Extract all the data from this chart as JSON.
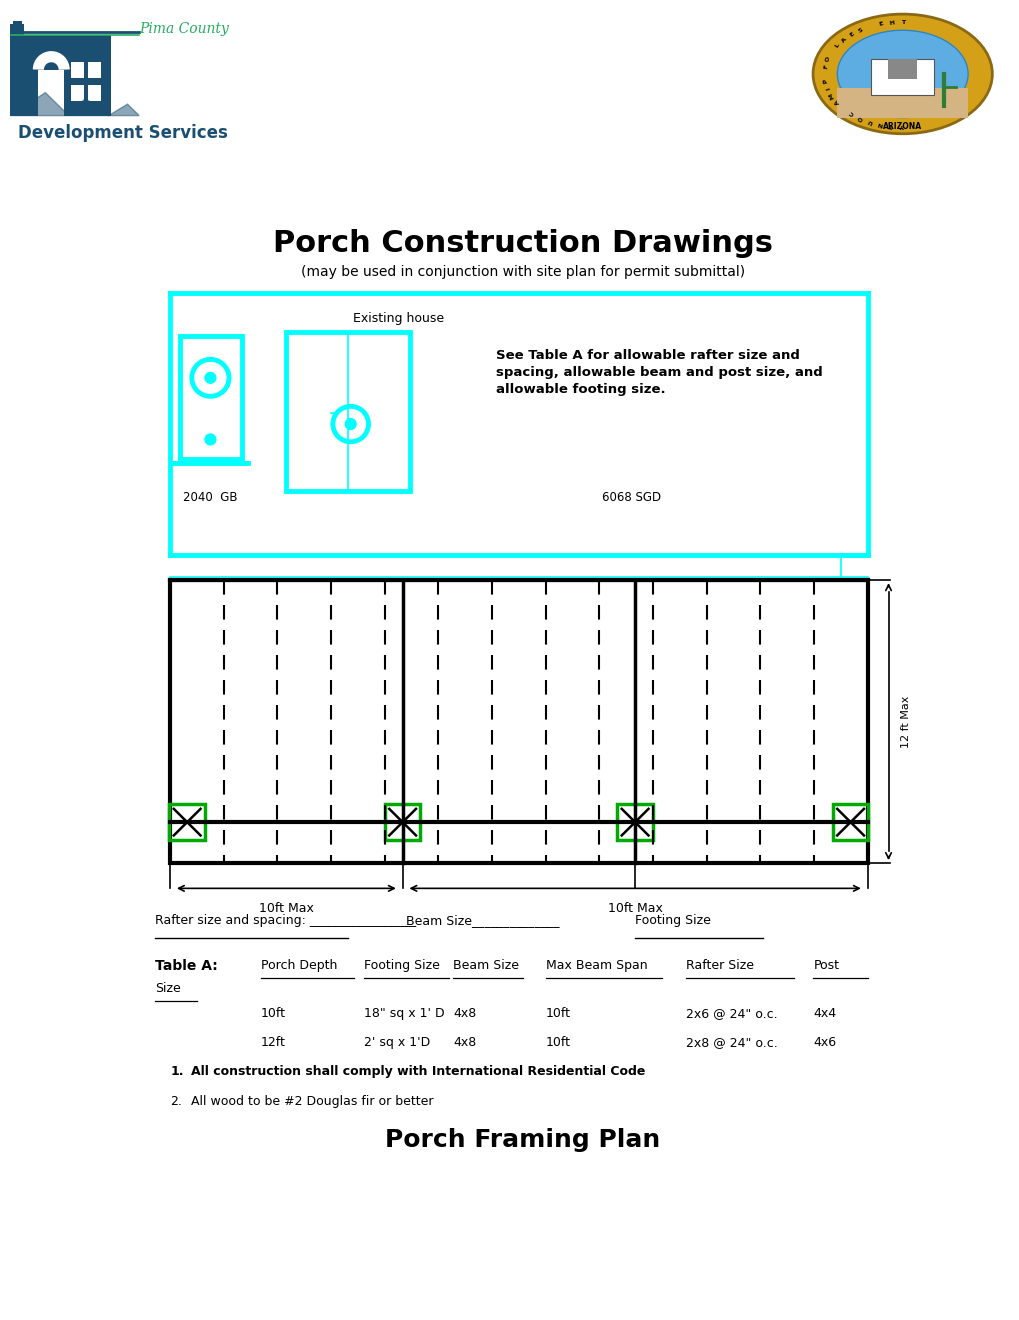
{
  "title": "Porch Construction Drawings",
  "subtitle": "(may be used in conjunction with site plan for permit submittal)",
  "bg_color": "#ffffff",
  "cyan": "#00FFFF",
  "black": "#000000",
  "green": "#00AA00",
  "dark_blue": "#1a3a5c",
  "building_color": "#1B4F72",
  "rafter_label": "Rafter size and spacing: _________________",
  "beam_label": "Beam Size______________",
  "footing_label": "Footing Size",
  "table_header": "Table A:",
  "col_headers": [
    "Porch Depth",
    "Footing Size",
    "Beam Size",
    "Max Beam Span",
    "Rafter Size",
    "Post"
  ],
  "row1": [
    "10ft",
    "18\" sq x 1' D",
    "4x8",
    "10ft",
    "2x6 @ 24\" o.c.",
    "4x4"
  ],
  "row2": [
    "12ft",
    "2' sq x 1'D",
    "4x8",
    "10ft",
    "2x8 @ 24\" o.c.",
    "4x6"
  ],
  "note1": "All construction shall comply with International Residential Code",
  "note2": "All wood to be #2 Douglas fir or better",
  "bottom_title": "Porch Framing Plan",
  "existing_house": "Existing house",
  "label_2040gb": "2040  GB",
  "label_6068sgd": "6068 SGD",
  "table_note": "See Table A for allowable rafter size and\nspacing, allowable beam and post size, and\nallowable footing size.",
  "dim_label": "12 ft Max",
  "dim_label2": "10ft Max",
  "dim_label3": "10ft Max"
}
